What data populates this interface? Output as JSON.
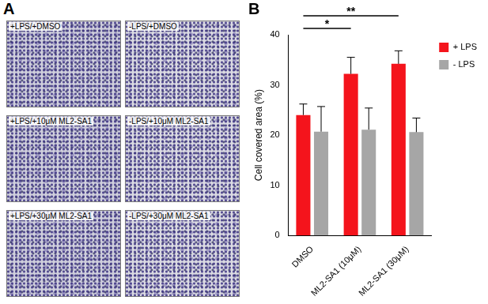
{
  "panel_a": {
    "label": "A",
    "images": [
      "+LPS/+DMSO",
      "-LPS/+DMSO",
      "+LPS/+10μM ML2-SA1",
      "-LPS/+10μM ML2-SA1",
      "+LPS/+30μM ML2-SA1",
      "-LPS/+30μM ML2-SA1"
    ]
  },
  "chart_data": {
    "type": "bar",
    "panel_label": "B",
    "categories": [
      "DMSO",
      "ML2-SA1 (10μM)",
      "ML2-SA1 (30μM)"
    ],
    "series": [
      {
        "name": "+ LPS",
        "color": "#f4141c",
        "values": [
          24.0,
          32.2,
          34.2
        ],
        "errors": [
          2.2,
          3.3,
          2.6
        ]
      },
      {
        "name": "- LPS",
        "color": "#a6a6a6",
        "values": [
          20.7,
          21.1,
          20.6
        ],
        "errors": [
          5.0,
          4.3,
          2.8
        ]
      }
    ],
    "y_label": "Cell covered area (%)",
    "ylim": [
      0,
      40
    ],
    "yticks": [
      0,
      10,
      20,
      30,
      40
    ],
    "grid": false,
    "legend": "upper right",
    "annotations": [
      {
        "from": "DMSO",
        "to": "ML2-SA1 (10μM)",
        "label": "*"
      },
      {
        "from": "DMSO",
        "to": "ML2-SA1 (30μM)",
        "label": "**"
      }
    ]
  }
}
